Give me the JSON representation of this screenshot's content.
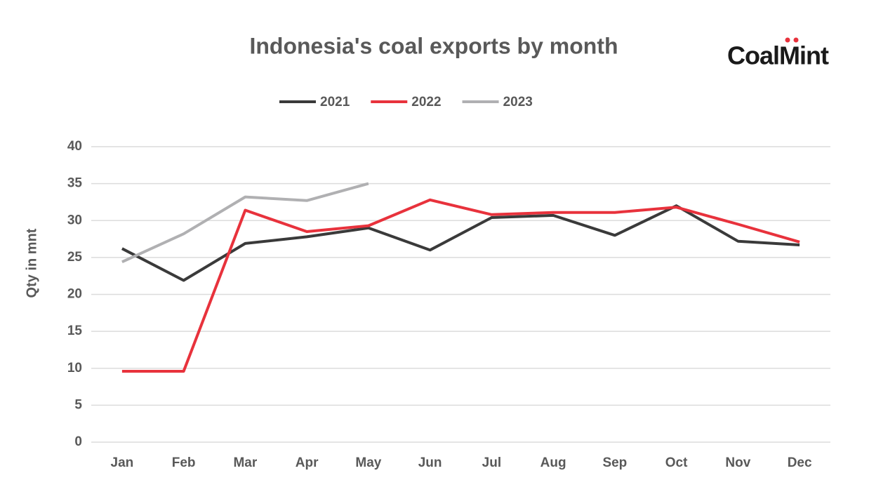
{
  "chart_data": {
    "type": "line",
    "title": "Indonesia's coal exports by month",
    "logo": "CoalMint",
    "ylabel": "Qty in mnt",
    "categories": [
      "Jan",
      "Feb",
      "Mar",
      "Apr",
      "May",
      "Jun",
      "Jul",
      "Aug",
      "Sep",
      "Oct",
      "Nov",
      "Dec"
    ],
    "series": [
      {
        "name": "2021",
        "color": "#3a3a3a",
        "values": [
          26.2,
          21.9,
          26.9,
          27.8,
          29.0,
          26.0,
          30.4,
          30.7,
          28.0,
          32.0,
          27.2,
          26.7
        ]
      },
      {
        "name": "2022",
        "color": "#e8323c",
        "values": [
          9.6,
          9.6,
          31.4,
          28.5,
          29.3,
          32.8,
          30.8,
          31.1,
          31.1,
          31.8,
          29.5,
          27.1
        ]
      },
      {
        "name": "2023",
        "color": "#b0b0b2",
        "values": [
          24.4,
          28.2,
          33.2,
          32.7,
          35.0,
          null,
          null,
          null,
          null,
          null,
          null,
          null
        ]
      }
    ],
    "ylim": [
      0,
      40
    ],
    "yticks": [
      0,
      5,
      10,
      15,
      20,
      25,
      30,
      35,
      40
    ],
    "grid": true,
    "legend": "top"
  }
}
